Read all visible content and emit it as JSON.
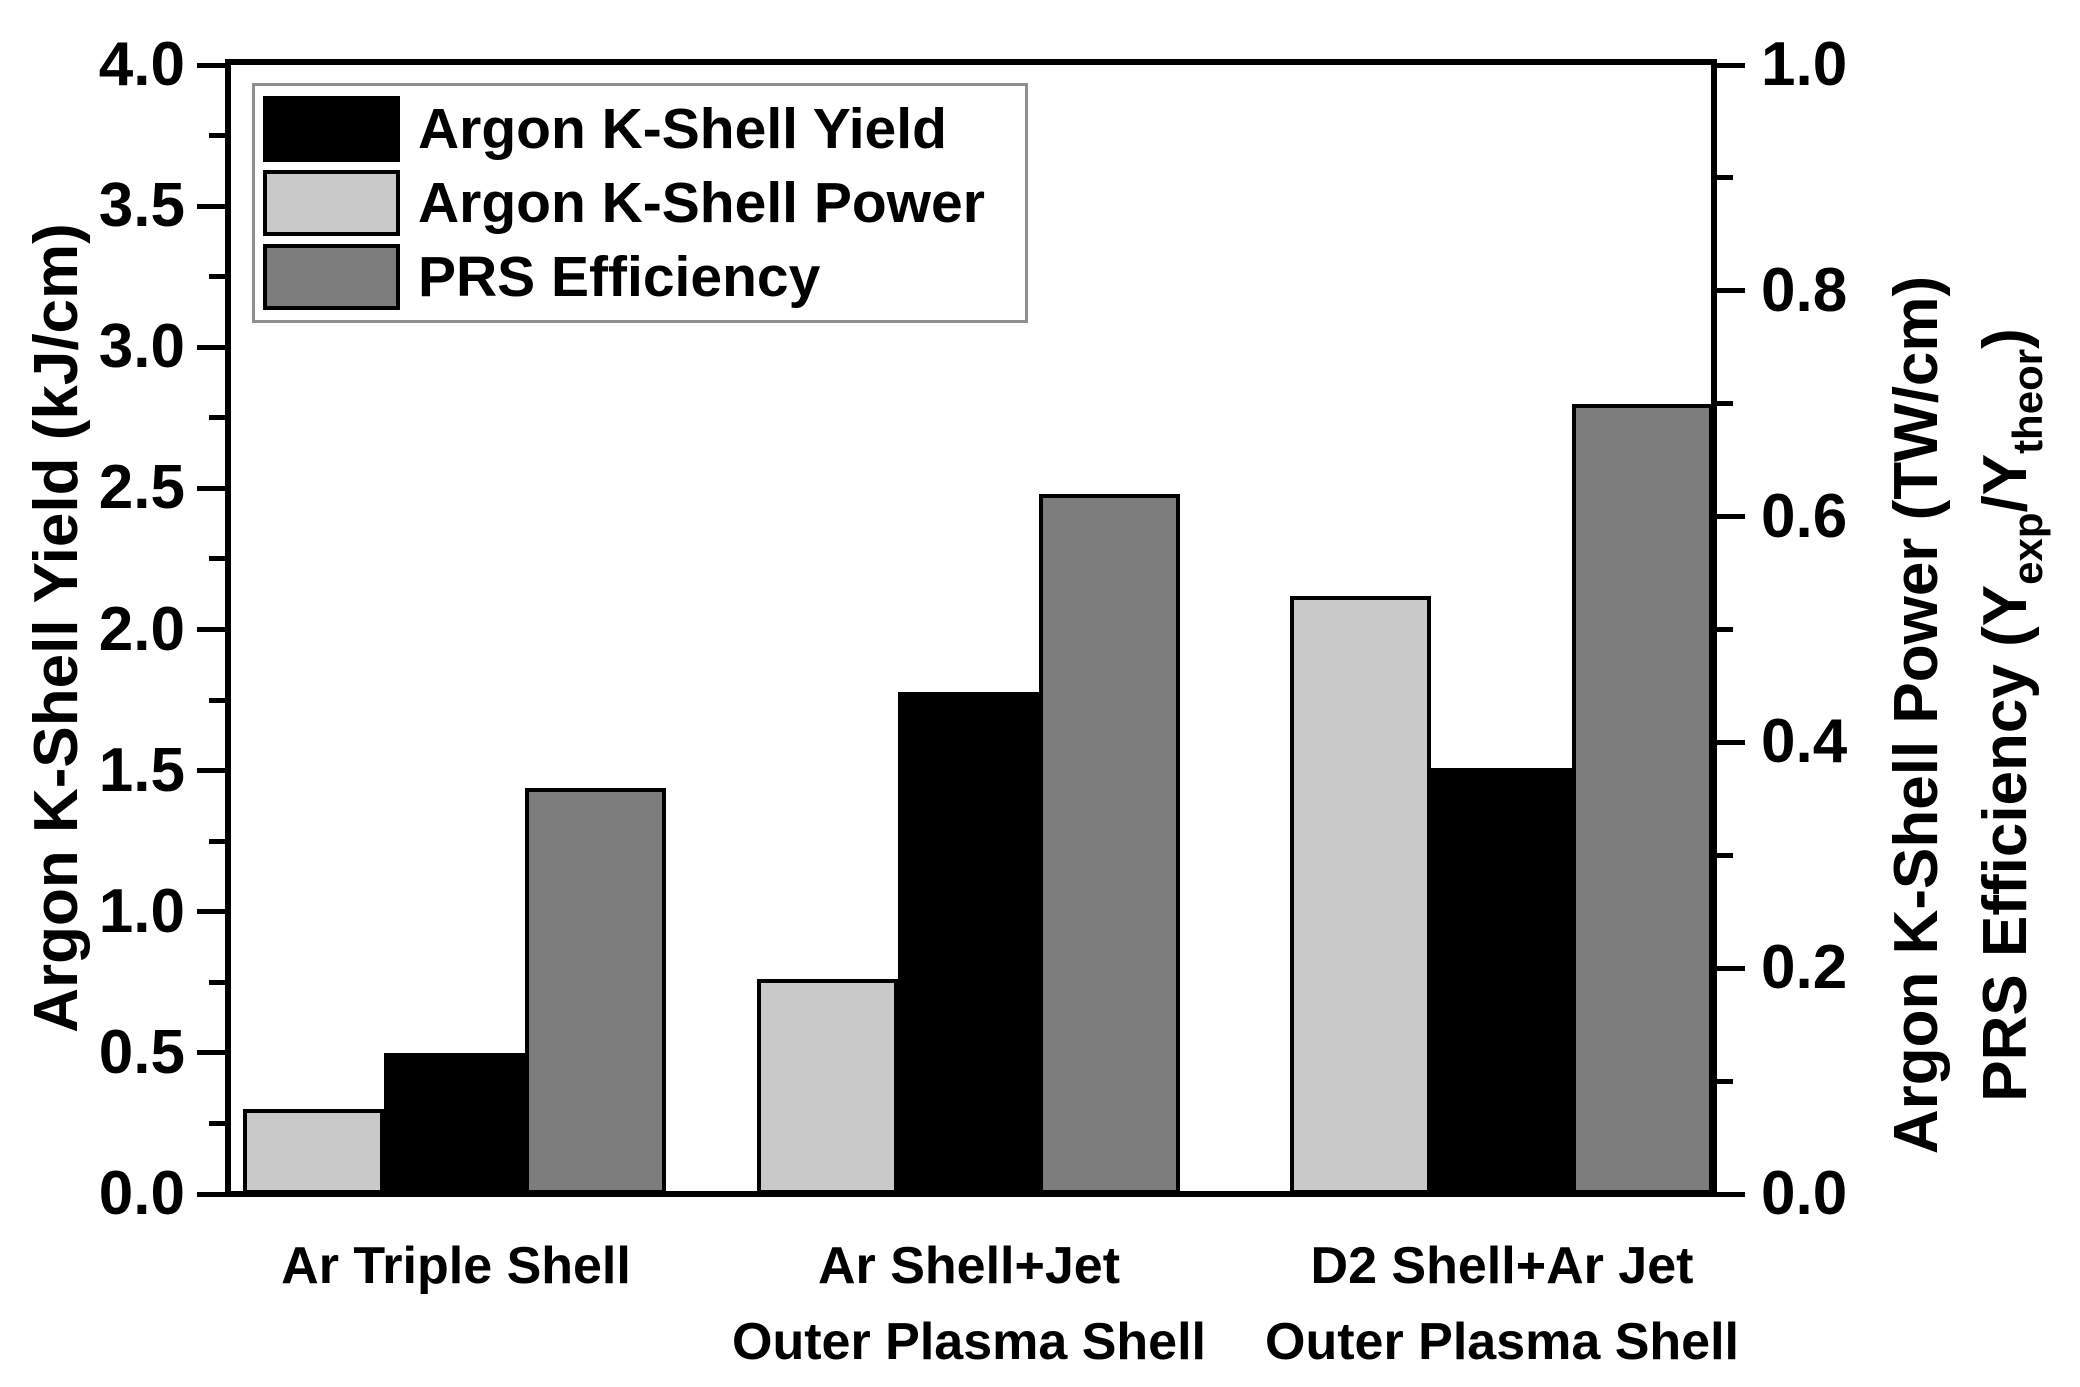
{
  "chart_data": {
    "type": "bar",
    "title": "",
    "background": "#ffffff",
    "grid": false,
    "legend_position": "top-left",
    "categories": [
      {
        "line1": "Ar Triple Shell",
        "line2": ""
      },
      {
        "line1": "Ar Shell+Jet",
        "line2": "Outer Plasma Shell"
      },
      {
        "line1": "D2 Shell+Ar Jet",
        "line2": "Outer Plasma Shell"
      }
    ],
    "series": [
      {
        "name": "Argon K-Shell Yield",
        "color": "#000000",
        "axis": "left",
        "values": [
          0.5,
          1.78,
          1.51
        ]
      },
      {
        "name": "Argon K-Shell Power",
        "color": "#c9c9c9",
        "axis": "right",
        "values": [
          0.075,
          0.19,
          0.53
        ]
      },
      {
        "name": "PRS Efficiency",
        "color": "#7d7d7d",
        "axis": "right",
        "values": [
          0.36,
          0.62,
          0.7
        ]
      }
    ],
    "left_axis": {
      "label": "Argon K-Shell Yield (kJ/cm)",
      "min": 0,
      "max": 4,
      "major_tick_labels": [
        "4.0",
        "3.5",
        "3.0",
        "2.5",
        "2.0",
        "1.5",
        "1.0",
        "0.5",
        "0.0"
      ],
      "minor_ticks_between_majors": 1
    },
    "right_axis": {
      "label_power": "Argon K-Shell Power (TW/cm)",
      "label_efficiency_parts": [
        {
          "t": "PRS Efficiency (Y"
        },
        {
          "t": "exp",
          "sub": true
        },
        {
          "t": "/Y"
        },
        {
          "t": "theor",
          "sub": true
        },
        {
          "t": ")"
        }
      ],
      "min": 0,
      "max": 1,
      "major_tick_labels": [
        "1.0",
        "0.8",
        "0.6",
        "0.4",
        "0.2",
        "0.0"
      ],
      "minor_ticks_between_majors": 1
    }
  }
}
